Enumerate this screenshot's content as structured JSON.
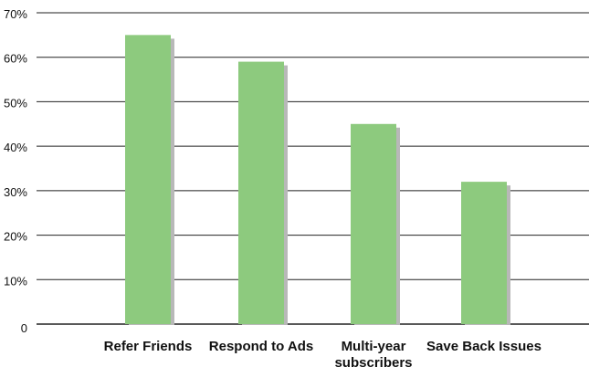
{
  "chart_data": {
    "type": "bar",
    "title": "",
    "xlabel": "",
    "ylabel": "",
    "categories": [
      [
        "Refer Friends"
      ],
      [
        "Respond to Ads"
      ],
      [
        "Multi-year",
        "subscribers"
      ],
      [
        "Save Back Issues"
      ]
    ],
    "values": [
      65,
      59,
      45,
      32
    ],
    "ylim": [
      0,
      70
    ],
    "y_ticks": [
      "0",
      "10%",
      "20%",
      "30%",
      "40%",
      "50%",
      "60%",
      "70%"
    ],
    "y_tick_values": [
      0,
      10,
      20,
      30,
      40,
      50,
      60,
      70
    ],
    "grid": true,
    "legend": "none",
    "colors": {
      "bar": "#8dca7e",
      "shadow": "#b8b8b8",
      "grid": "#222222",
      "text": "#111111"
    }
  }
}
